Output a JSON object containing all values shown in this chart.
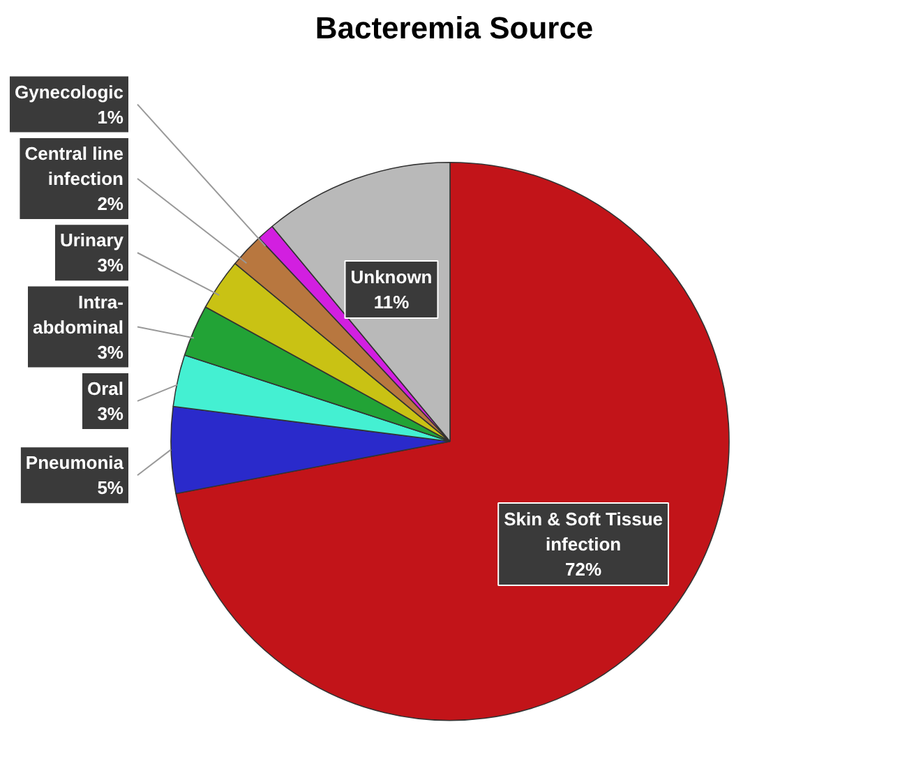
{
  "chart_data": {
    "type": "pie",
    "title": "Bacteremia Source",
    "categories": [
      "Skin & Soft Tissue\ninfection",
      "Pneumonia",
      "Oral",
      "Intra-\nabdominal",
      "Urinary",
      "Central line\ninfection",
      "Gynecologic",
      "Unknown"
    ],
    "values": [
      72,
      5,
      3,
      3,
      3,
      2,
      1,
      11
    ],
    "value_labels": [
      "72%",
      "5%",
      "3%",
      "3%",
      "3%",
      "2%",
      "1%",
      "11%"
    ],
    "colors": [
      "#c21419",
      "#2a2acb",
      "#44f0d2",
      "#22a336",
      "#c9c214",
      "#b8773f",
      "#d21fe0",
      "#b9b9b9"
    ]
  }
}
